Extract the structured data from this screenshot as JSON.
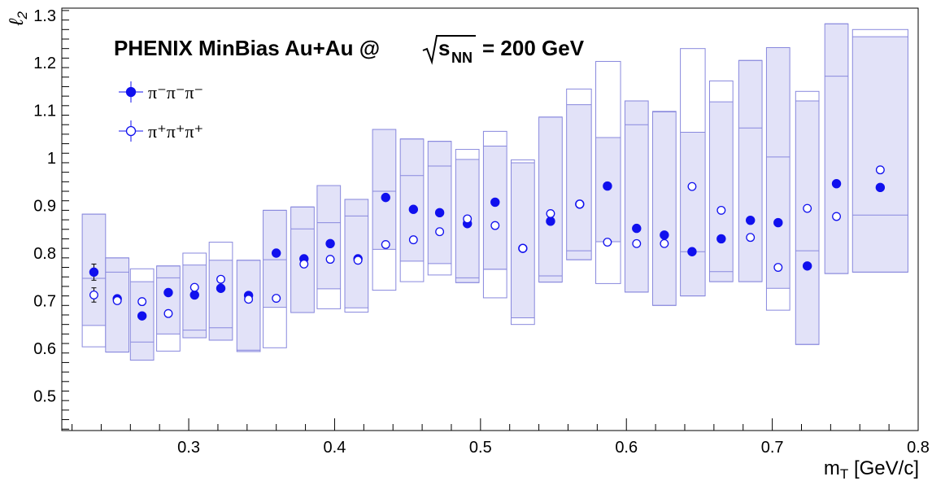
{
  "chart_data": {
    "type": "scatter",
    "title": {
      "main": "PHENIX MinBias Au+Au @",
      "sqrt_sub": "NN",
      "sqrt_base": "s",
      "suffix": "= 200 GeV"
    },
    "xlabel": {
      "base": "m",
      "sub": "T",
      "rest": " [GeV/c]"
    },
    "ylabel": {
      "base": "ℓ",
      "sub": "2"
    },
    "xlim": [
      0.213,
      0.8
    ],
    "ylim": [
      0.427,
      1.315
    ],
    "x_ticks": [
      {
        "v": 0.3,
        "label": "0.3"
      },
      {
        "v": 0.4,
        "label": "0.4"
      },
      {
        "v": 0.5,
        "label": "0.5"
      },
      {
        "v": 0.6,
        "label": "0.6"
      },
      {
        "v": 0.7,
        "label": "0.7"
      },
      {
        "v": 0.8,
        "label": "0.8"
      }
    ],
    "y_ticks": [
      {
        "v": 0.5,
        "label": "0.5"
      },
      {
        "v": 0.6,
        "label": "0.6"
      },
      {
        "v": 0.7,
        "label": "0.7"
      },
      {
        "v": 0.8,
        "label": "0.8"
      },
      {
        "v": 0.9,
        "label": "0.9"
      },
      {
        "v": 1.0,
        "label": "1"
      },
      {
        "v": 1.1,
        "label": "1.1"
      },
      {
        "v": 1.2,
        "label": "1.2"
      },
      {
        "v": 1.3,
        "label": "1.3"
      }
    ],
    "legend": [
      {
        "symbol": "filled-circle",
        "label": "π⁻π⁻π⁻"
      },
      {
        "symbol": "open-circle",
        "label": "π⁺π⁺π⁺"
      }
    ],
    "series": [
      {
        "name": "π⁻π⁻π⁻",
        "marker": "filled",
        "x": [
          0.235,
          0.251,
          0.268,
          0.286,
          0.304,
          0.322,
          0.341,
          0.36,
          0.379,
          0.397,
          0.416,
          0.435,
          0.454,
          0.472,
          0.491,
          0.51,
          0.529,
          0.548,
          0.568,
          0.587,
          0.607,
          0.626,
          0.645,
          0.665,
          0.685,
          0.704,
          0.724,
          0.744,
          0.774
        ],
        "y": [
          0.76,
          0.704,
          0.668,
          0.717,
          0.712,
          0.726,
          0.711,
          0.8,
          0.788,
          0.82,
          0.788,
          0.917,
          0.892,
          0.885,
          0.862,
          0.907,
          0.81,
          0.867,
          0.903,
          0.941,
          0.852,
          0.838,
          0.803,
          0.83,
          0.869,
          0.864,
          0.773,
          0.946,
          0.938
        ],
        "stat_err": [
          0.017,
          0.005,
          0.005,
          0.005,
          0.005,
          0.005,
          0.005,
          0.005,
          0.005,
          0.005,
          0.005,
          0.005,
          0.005,
          0.005,
          0.005,
          0.005,
          0.005,
          0.005,
          0.005,
          0.005,
          0.005,
          0.005,
          0.005,
          0.005,
          0.005,
          0.005,
          0.005,
          0.005,
          0.005
        ]
      },
      {
        "name": "π⁺π⁺π⁺",
        "marker": "open",
        "x": [
          0.235,
          0.251,
          0.268,
          0.286,
          0.304,
          0.322,
          0.341,
          0.36,
          0.379,
          0.397,
          0.416,
          0.435,
          0.454,
          0.472,
          0.491,
          0.51,
          0.529,
          0.548,
          0.568,
          0.587,
          0.607,
          0.626,
          0.645,
          0.665,
          0.685,
          0.704,
          0.724,
          0.744,
          0.774
        ],
        "y": [
          0.712,
          0.7,
          0.698,
          0.673,
          0.728,
          0.745,
          0.703,
          0.705,
          0.777,
          0.787,
          0.785,
          0.818,
          0.828,
          0.845,
          0.872,
          0.858,
          0.81,
          0.883,
          0.903,
          0.823,
          0.82,
          0.82,
          0.94,
          0.89,
          0.833,
          0.77,
          0.894,
          0.877,
          0.975
        ],
        "stat_err": [
          0.015,
          0.005,
          0.005,
          0.005,
          0.005,
          0.005,
          0.005,
          0.005,
          0.005,
          0.005,
          0.005,
          0.005,
          0.005,
          0.005,
          0.005,
          0.005,
          0.005,
          0.005,
          0.005,
          0.005,
          0.005,
          0.005,
          0.005,
          0.005,
          0.005,
          0.005,
          0.005,
          0.005,
          0.005
        ]
      }
    ],
    "sys_boxes": [
      {
        "x0": 0.227,
        "x1": 0.243,
        "filled": [
          0.648,
          0.882
        ],
        "outline": [
          0.603,
          0.882
        ],
        "midline": 0.747
      },
      {
        "x0": 0.243,
        "x1": 0.259,
        "filled": [
          0.592,
          0.79
        ],
        "outline": [
          0.592,
          0.79
        ],
        "midline": 0.76
      },
      {
        "x0": 0.26,
        "x1": 0.276,
        "filled": [
          0.575,
          0.74
        ],
        "outline": [
          0.575,
          0.767
        ],
        "midline": 0.613
      },
      {
        "x0": 0.278,
        "x1": 0.294,
        "filled": [
          0.63,
          0.773
        ],
        "outline": [
          0.594,
          0.773
        ],
        "midline": 0.748
      },
      {
        "x0": 0.296,
        "x1": 0.312,
        "filled": [
          0.622,
          0.775
        ],
        "outline": [
          0.622,
          0.8
        ],
        "midline": 0.638
      },
      {
        "x0": 0.314,
        "x1": 0.33,
        "filled": [
          0.617,
          0.785
        ],
        "outline": [
          0.617,
          0.823
        ],
        "midline": 0.643
      },
      {
        "x0": 0.333,
        "x1": 0.349,
        "filled": [
          0.593,
          0.785
        ],
        "outline": [
          0.593,
          0.785
        ],
        "midline": 0.596
      },
      {
        "x0": 0.351,
        "x1": 0.367,
        "filled": [
          0.686,
          0.89
        ],
        "outline": [
          0.601,
          0.89
        ],
        "midline": 0.786
      },
      {
        "x0": 0.37,
        "x1": 0.386,
        "filled": [
          0.675,
          0.897
        ],
        "outline": [
          0.675,
          0.897
        ],
        "midline": 0.851
      },
      {
        "x0": 0.388,
        "x1": 0.404,
        "filled": [
          0.725,
          0.942
        ],
        "outline": [
          0.683,
          0.942
        ],
        "midline": 0.864
      },
      {
        "x0": 0.407,
        "x1": 0.423,
        "filled": [
          0.685,
          0.913
        ],
        "outline": [
          0.676,
          0.913
        ],
        "midline": 0.878
      },
      {
        "x0": 0.426,
        "x1": 0.442,
        "filled": [
          0.808,
          1.06
        ],
        "outline": [
          0.722,
          1.06
        ],
        "midline": 0.93
      },
      {
        "x0": 0.445,
        "x1": 0.461,
        "filled": [
          0.783,
          1.04
        ],
        "outline": [
          0.74,
          1.04
        ],
        "midline": 0.963
      },
      {
        "x0": 0.464,
        "x1": 0.48,
        "filled": [
          0.778,
          1.035
        ],
        "outline": [
          0.754,
          1.035
        ],
        "midline": 0.983
      },
      {
        "x0": 0.483,
        "x1": 0.499,
        "filled": [
          0.738,
          0.997
        ],
        "outline": [
          0.738,
          1.018
        ],
        "midline": 0.748
      },
      {
        "x0": 0.502,
        "x1": 0.518,
        "filled": [
          0.766,
          1.025
        ],
        "outline": [
          0.706,
          1.056
        ],
        "midline": 0.766
      },
      {
        "x0": 0.521,
        "x1": 0.537,
        "filled": [
          0.664,
          0.99
        ],
        "outline": [
          0.65,
          0.996
        ],
        "midline": 0.664
      },
      {
        "x0": 0.54,
        "x1": 0.556,
        "filled": [
          0.739,
          1.086
        ],
        "outline": [
          0.739,
          1.086
        ],
        "midline": 0.752
      },
      {
        "x0": 0.559,
        "x1": 0.576,
        "filled": [
          0.786,
          1.112
        ],
        "outline": [
          0.786,
          1.145
        ],
        "midline": 0.805
      },
      {
        "x0": 0.579,
        "x1": 0.596,
        "filled": [
          0.824,
          1.043
        ],
        "outline": [
          0.736,
          1.203
        ],
        "midline": 0.824
      },
      {
        "x0": 0.599,
        "x1": 0.615,
        "filled": [
          0.718,
          1.12
        ],
        "outline": [
          0.718,
          1.12
        ],
        "midline": 1.07
      },
      {
        "x0": 0.618,
        "x1": 0.634,
        "filled": [
          0.69,
          1.097
        ],
        "outline": [
          0.69,
          1.098
        ],
        "midline": 1.097
      },
      {
        "x0": 0.637,
        "x1": 0.654,
        "filled": [
          0.71,
          1.054
        ],
        "outline": [
          0.71,
          1.23
        ],
        "midline": 0.803
      },
      {
        "x0": 0.657,
        "x1": 0.673,
        "filled": [
          0.74,
          1.118
        ],
        "outline": [
          0.74,
          1.162
        ],
        "midline": 0.761
      },
      {
        "x0": 0.677,
        "x1": 0.693,
        "filled": [
          0.74,
          1.205
        ],
        "outline": [
          0.74,
          1.205
        ],
        "midline": 1.063
      },
      {
        "x0": 0.696,
        "x1": 0.712,
        "filled": [
          0.726,
          1.232
        ],
        "outline": [
          0.68,
          1.232
        ],
        "midline": 1.002
      },
      {
        "x0": 0.716,
        "x1": 0.732,
        "filled": [
          0.608,
          1.12
        ],
        "outline": [
          0.608,
          1.14
        ],
        "midline": 0.805
      },
      {
        "x0": 0.736,
        "x1": 0.752,
        "filled": [
          0.757,
          1.282
        ],
        "outline": [
          0.757,
          1.282
        ],
        "midline": 1.172
      },
      {
        "x0": 0.755,
        "x1": 0.793,
        "filled": [
          0.76,
          1.255
        ],
        "outline": [
          0.76,
          1.27
        ],
        "midline": 0.88
      }
    ]
  }
}
